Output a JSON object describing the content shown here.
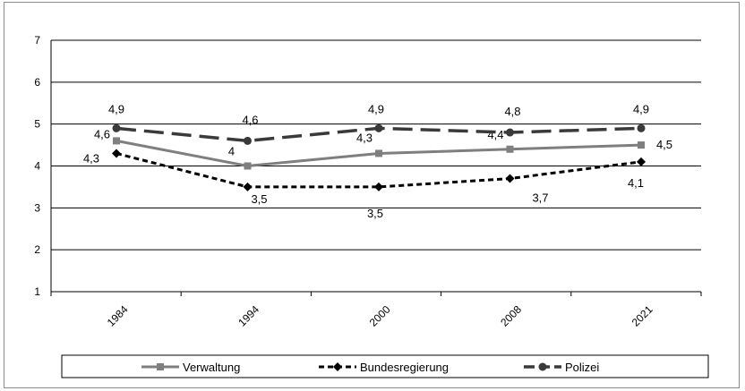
{
  "chart_data": {
    "type": "line",
    "categories": [
      "1984",
      "1994",
      "2000",
      "2008",
      "2021"
    ],
    "ylim": [
      1,
      7
    ],
    "yticks": [
      "1",
      "2",
      "3",
      "4",
      "5",
      "6",
      "7"
    ],
    "grid": true,
    "legend_position": "bottom",
    "series": [
      {
        "name": "Verwaltung",
        "values": [
          4.6,
          4.0,
          4.3,
          4.4,
          4.5
        ],
        "labels": [
          "4,6",
          "4",
          "4,3",
          "4,4",
          "4,5"
        ],
        "color": "#7f7f7f",
        "marker": "square",
        "dash": "solid"
      },
      {
        "name": "Bundesregierung",
        "values": [
          4.3,
          3.5,
          3.5,
          3.7,
          4.1
        ],
        "labels": [
          "4,3",
          "3,5",
          "3,5",
          "3,7",
          "4,1"
        ],
        "color": "#000000",
        "marker": "diamond",
        "dash": "short-dash"
      },
      {
        "name": "Polizei",
        "values": [
          4.9,
          4.6,
          4.9,
          4.8,
          4.9
        ],
        "labels": [
          "4,9",
          "4,6",
          "4,9",
          "4,8",
          "4,9"
        ],
        "color": "#3a3a3a",
        "marker": "circle",
        "dash": "long-dash"
      }
    ]
  }
}
